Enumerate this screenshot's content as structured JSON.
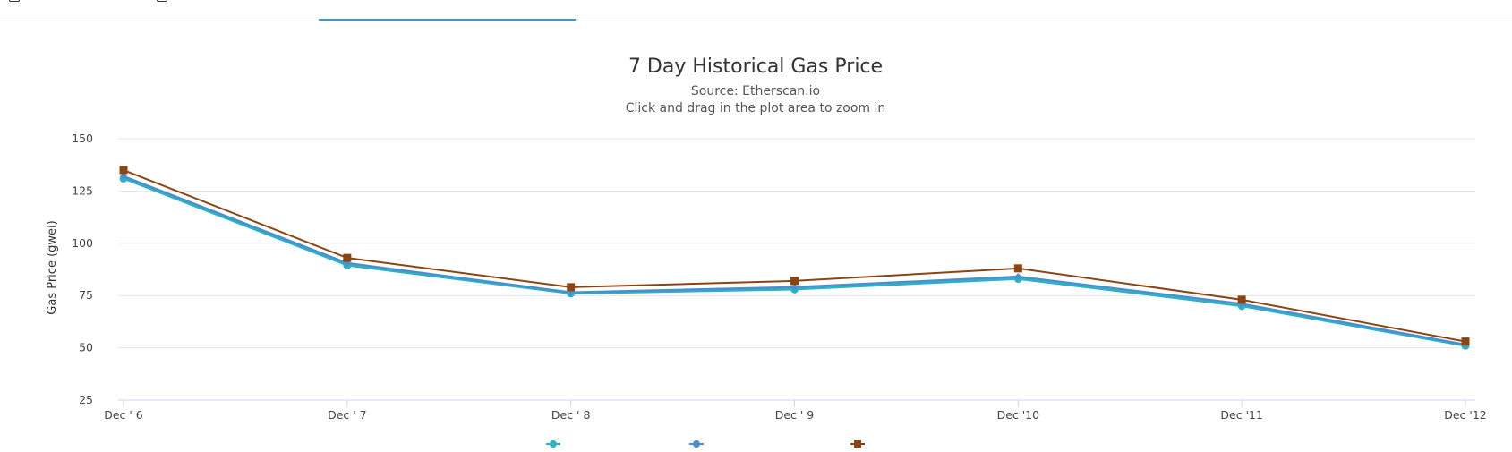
{
  "tabs": [
    {
      "label": "",
      "active": false
    },
    {
      "label": "",
      "active": false
    },
    {
      "label": "",
      "active": true
    }
  ],
  "chart_data": {
    "type": "line",
    "title": "7 Day Historical Gas Price",
    "subtitle": "Source: Etherscan.io",
    "subtitle2": "Click and drag in the plot area to zoom in",
    "xlabel": "",
    "ylabel": "Gas Price (gwei)",
    "categories": [
      "Dec ' 6",
      "Dec ' 7",
      "Dec ' 8",
      "Dec ' 9",
      "Dec '10",
      "Dec '11",
      "Dec '12"
    ],
    "ylim": [
      25,
      150
    ],
    "yticks": [
      25,
      50,
      75,
      100,
      125,
      150
    ],
    "grid": true,
    "legend_position": "bottom-center",
    "series": [
      {
        "name": "",
        "color": "#2bb3c0",
        "marker": "circle",
        "values": [
          131,
          89.5,
          76,
          78,
          83,
          70,
          51
        ]
      },
      {
        "name": "",
        "color": "#4a8fd1",
        "marker": "diamond",
        "values": [
          132,
          90.5,
          76.5,
          79,
          84,
          71,
          51.5
        ]
      },
      {
        "name": "",
        "color": "#8b4513",
        "marker": "square",
        "values": [
          135,
          93,
          79,
          82,
          88,
          73,
          53
        ]
      }
    ]
  }
}
